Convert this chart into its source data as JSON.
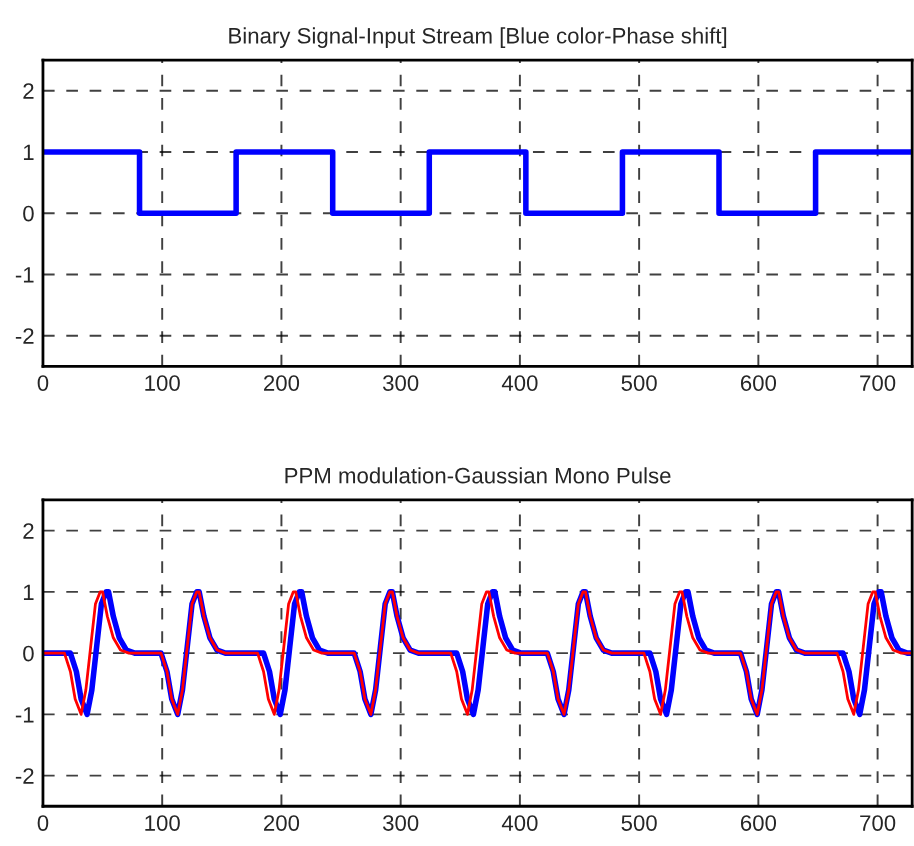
{
  "chart_data": [
    {
      "type": "step",
      "title": "Binary Signal-Input Stream [Blue color-Phase shift]",
      "xlim": [
        0,
        729
      ],
      "ylim": [
        -2.5,
        2.5
      ],
      "xticks": [
        0,
        100,
        200,
        300,
        400,
        500,
        600,
        700
      ],
      "yticks": [
        -2,
        -1,
        0,
        1,
        2
      ],
      "grid": true,
      "series": [
        {
          "color": "#0000ff",
          "x": [
            0,
            81,
            162,
            243,
            324,
            405,
            486,
            567,
            648,
            729
          ],
          "values": [
            1,
            0,
            1,
            0,
            1,
            0,
            1,
            0,
            1,
            1
          ]
        }
      ]
    },
    {
      "type": "line",
      "title": "PPM modulation-Gaussian Mono Pulse",
      "xlim": [
        0,
        729
      ],
      "ylim": [
        -2.5,
        2.5
      ],
      "xticks": [
        0,
        100,
        200,
        300,
        400,
        500,
        600,
        700
      ],
      "yticks": [
        -2,
        -1,
        0,
        1,
        2
      ],
      "grid": true,
      "series": [
        {
          "color": "#0000ff",
          "x": [
            0,
            23,
            28,
            32,
            37,
            41,
            45,
            49,
            53,
            55,
            59,
            64,
            70,
            77,
            81,
            99,
            104,
            108,
            113,
            117,
            121,
            125,
            129,
            131,
            135,
            140,
            146,
            153,
            162,
            185,
            190,
            194,
            199,
            203,
            207,
            211,
            215,
            217,
            221,
            226,
            232,
            239,
            243,
            261,
            266,
            270,
            275,
            279,
            283,
            287,
            291,
            293,
            297,
            302,
            308,
            315,
            324,
            347,
            352,
            356,
            361,
            365,
            369,
            373,
            377,
            379,
            383,
            388,
            394,
            401,
            405,
            423,
            428,
            432,
            437,
            441,
            445,
            449,
            453,
            455,
            459,
            464,
            470,
            477,
            486,
            509,
            514,
            518,
            523,
            527,
            531,
            535,
            539,
            541,
            545,
            550,
            556,
            563,
            567,
            585,
            590,
            594,
            599,
            603,
            607,
            611,
            615,
            617,
            621,
            626,
            632,
            639,
            648,
            671,
            676,
            680,
            685,
            689,
            693,
            697,
            701,
            703,
            707,
            712,
            718,
            725,
            729
          ],
          "values": [
            0,
            0,
            -0.3,
            -0.75,
            -1,
            -0.6,
            0.1,
            0.8,
            1,
            1,
            0.6,
            0.25,
            0.05,
            0,
            0,
            0,
            -0.3,
            -0.75,
            -1,
            -0.6,
            0.1,
            0.8,
            1,
            1,
            0.6,
            0.25,
            0.05,
            0,
            0,
            0,
            -0.3,
            -0.75,
            -1,
            -0.6,
            0.1,
            0.8,
            1,
            1,
            0.6,
            0.25,
            0.05,
            0,
            0,
            0,
            -0.3,
            -0.75,
            -1,
            -0.6,
            0.1,
            0.8,
            1,
            1,
            0.6,
            0.25,
            0.05,
            0,
            0,
            0,
            -0.3,
            -0.75,
            -1,
            -0.6,
            0.1,
            0.8,
            1,
            1,
            0.6,
            0.25,
            0.05,
            0,
            0,
            0,
            -0.3,
            -0.75,
            -1,
            -0.6,
            0.1,
            0.8,
            1,
            1,
            0.6,
            0.25,
            0.05,
            0,
            0,
            0,
            -0.3,
            -0.75,
            -1,
            -0.6,
            0.1,
            0.8,
            1,
            1,
            0.6,
            0.25,
            0.05,
            0,
            0,
            0,
            -0.3,
            -0.75,
            -1,
            -0.6,
            0.1,
            0.8,
            1,
            1,
            0.6,
            0.25,
            0.05,
            0,
            0,
            0,
            -0.3,
            -0.75,
            -1,
            -0.6,
            0.1,
            0.8,
            1,
            1,
            0.6,
            0.25,
            0.05,
            0,
            0
          ]
        },
        {
          "color": "#ff0000",
          "x": [
            0,
            18,
            23,
            27,
            32,
            36,
            40,
            44,
            48,
            50,
            54,
            59,
            65,
            72,
            81,
            99,
            104,
            108,
            113,
            117,
            121,
            125,
            129,
            131,
            135,
            140,
            146,
            153,
            162,
            180,
            185,
            189,
            194,
            198,
            202,
            206,
            210,
            212,
            216,
            221,
            227,
            234,
            243,
            261,
            266,
            270,
            275,
            279,
            283,
            287,
            291,
            293,
            297,
            302,
            308,
            315,
            324,
            342,
            347,
            351,
            356,
            360,
            364,
            368,
            372,
            374,
            378,
            383,
            389,
            396,
            405,
            423,
            428,
            432,
            437,
            441,
            445,
            449,
            453,
            455,
            459,
            464,
            470,
            477,
            486,
            504,
            509,
            513,
            518,
            522,
            526,
            530,
            534,
            536,
            540,
            545,
            551,
            558,
            567,
            585,
            590,
            594,
            599,
            603,
            607,
            611,
            615,
            617,
            621,
            626,
            632,
            639,
            648,
            666,
            671,
            675,
            680,
            684,
            688,
            692,
            696,
            698,
            702,
            707,
            713,
            720,
            729
          ],
          "values": [
            0,
            0,
            -0.3,
            -0.75,
            -1,
            -0.6,
            0.1,
            0.8,
            1,
            1,
            0.6,
            0.25,
            0.05,
            0,
            0,
            0,
            -0.3,
            -0.75,
            -1,
            -0.6,
            0.1,
            0.8,
            1,
            1,
            0.6,
            0.25,
            0.05,
            0,
            0,
            0,
            -0.3,
            -0.75,
            -1,
            -0.6,
            0.1,
            0.8,
            1,
            1,
            0.6,
            0.25,
            0.05,
            0,
            0,
            0,
            -0.3,
            -0.75,
            -1,
            -0.6,
            0.1,
            0.8,
            1,
            1,
            0.6,
            0.25,
            0.05,
            0,
            0,
            0,
            -0.3,
            -0.75,
            -1,
            -0.6,
            0.1,
            0.8,
            1,
            1,
            0.6,
            0.25,
            0.05,
            0,
            0,
            0,
            -0.3,
            -0.75,
            -1,
            -0.6,
            0.1,
            0.8,
            1,
            1,
            0.6,
            0.25,
            0.05,
            0,
            0,
            0,
            -0.3,
            -0.75,
            -1,
            -0.6,
            0.1,
            0.8,
            1,
            1,
            0.6,
            0.25,
            0.05,
            0,
            0,
            0,
            -0.3,
            -0.75,
            -1,
            -0.6,
            0.1,
            0.8,
            1,
            1,
            0.6,
            0.25,
            0.05,
            0,
            0,
            0,
            -0.3,
            -0.75,
            -1,
            -0.6,
            0.1,
            0.8,
            1,
            1,
            0.6,
            0.25,
            0.05,
            0,
            0
          ]
        }
      ]
    }
  ]
}
